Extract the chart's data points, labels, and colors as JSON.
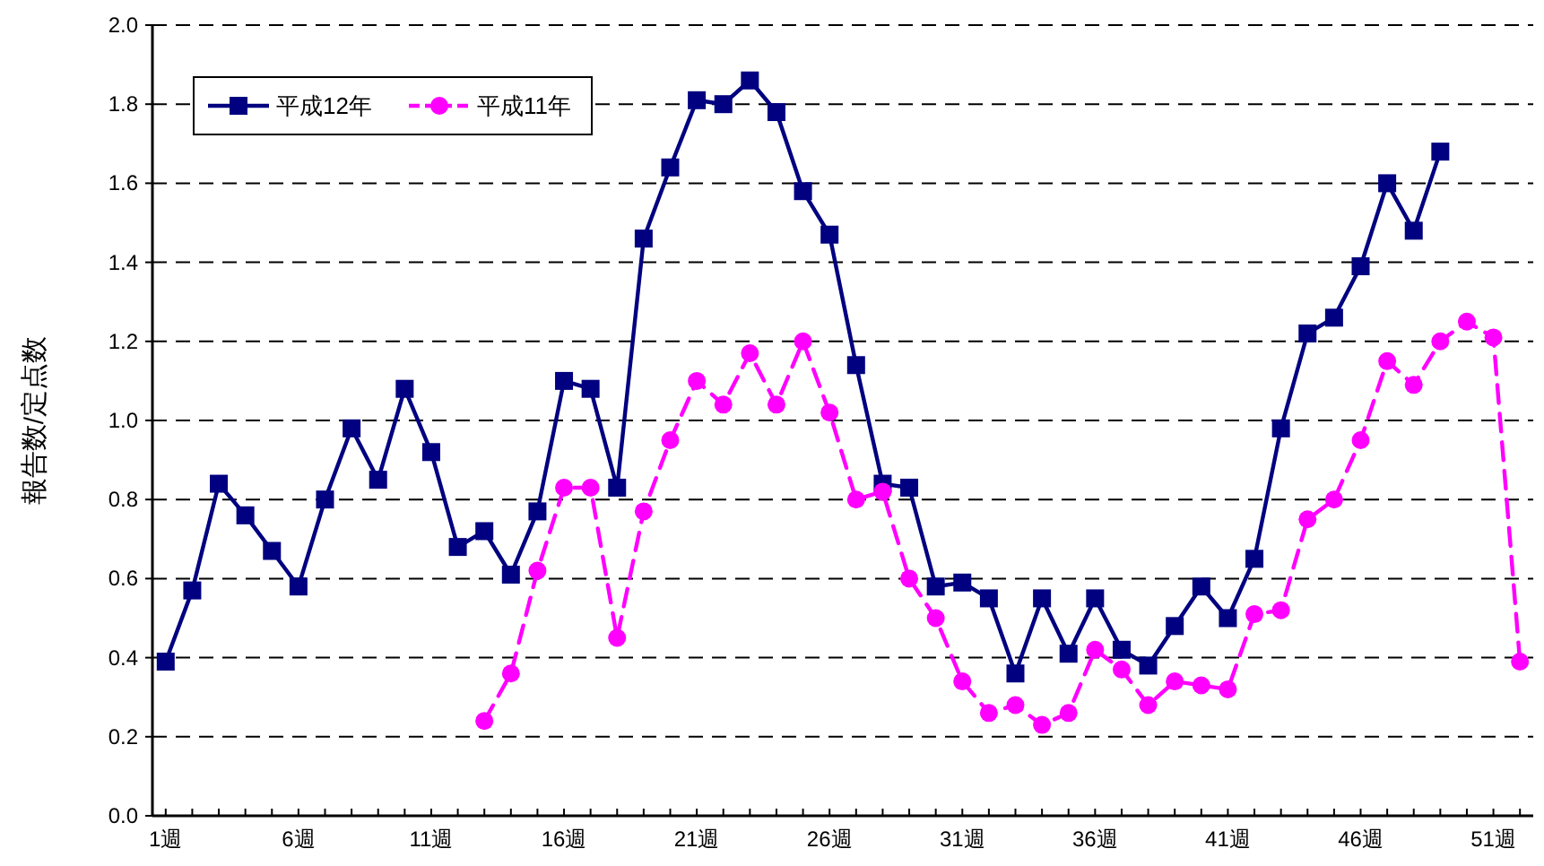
{
  "chart_data": {
    "type": "line",
    "ylabel": "報告数/定点数",
    "categories": [
      "1週",
      null,
      null,
      null,
      null,
      "6週",
      null,
      null,
      null,
      null,
      "11週",
      null,
      null,
      null,
      null,
      "16週",
      null,
      null,
      null,
      null,
      "21週",
      null,
      null,
      null,
      null,
      "26週",
      null,
      null,
      null,
      null,
      "31週",
      null,
      null,
      null,
      null,
      "36週",
      null,
      null,
      null,
      null,
      "41週",
      null,
      null,
      null,
      null,
      "46週",
      null,
      null,
      null,
      null,
      "51週",
      null
    ],
    "series": [
      {
        "name": "平成12年",
        "color": "#000080",
        "marker": "square",
        "line_style": "solid",
        "values": [
          0.39,
          0.57,
          0.84,
          0.76,
          0.67,
          0.58,
          0.8,
          0.98,
          0.85,
          1.08,
          0.92,
          0.68,
          0.72,
          0.61,
          0.77,
          1.1,
          1.08,
          0.83,
          1.46,
          1.64,
          1.81,
          1.8,
          1.86,
          1.78,
          1.58,
          1.47,
          1.14,
          0.84,
          0.83,
          0.58,
          0.59,
          0.55,
          0.36,
          0.55,
          0.41,
          0.55,
          0.42,
          0.38,
          0.48,
          0.58,
          0.5,
          0.65,
          0.98,
          1.22,
          1.26,
          1.39,
          1.6,
          1.48,
          1.68,
          null,
          null,
          null
        ]
      },
      {
        "name": "平成11年",
        "color": "#ff00ff",
        "marker": "circle",
        "line_style": "dashed",
        "values": [
          null,
          null,
          null,
          null,
          null,
          null,
          null,
          null,
          null,
          null,
          null,
          null,
          0.24,
          0.36,
          0.62,
          0.83,
          0.83,
          0.45,
          0.77,
          0.95,
          1.1,
          1.04,
          1.17,
          1.04,
          1.2,
          1.02,
          0.8,
          0.82,
          0.6,
          0.5,
          0.34,
          0.26,
          0.28,
          0.23,
          0.26,
          0.42,
          0.37,
          0.28,
          0.34,
          0.33,
          0.32,
          0.51,
          0.52,
          0.75,
          0.8,
          0.95,
          1.15,
          1.09,
          1.2,
          1.25,
          1.21,
          0.39
        ]
      }
    ],
    "ylim": [
      0,
      2
    ],
    "yticks": [
      {
        "value": 0,
        "label": "0.0"
      },
      {
        "value": 0.2,
        "label": "0.2"
      },
      {
        "value": 0.4,
        "label": "0.4"
      },
      {
        "value": 0.6,
        "label": "0.6"
      },
      {
        "value": 0.8,
        "label": "0.8"
      },
      {
        "value": 1,
        "label": "1.0"
      },
      {
        "value": 1.2,
        "label": "1.2"
      },
      {
        "value": 1.4,
        "label": "1.4"
      },
      {
        "value": 1.6,
        "label": "1.6"
      },
      {
        "value": 1.8,
        "label": "1.8"
      },
      {
        "value": 2,
        "label": "2.0"
      }
    ],
    "grid": "y",
    "legend": "top left"
  }
}
